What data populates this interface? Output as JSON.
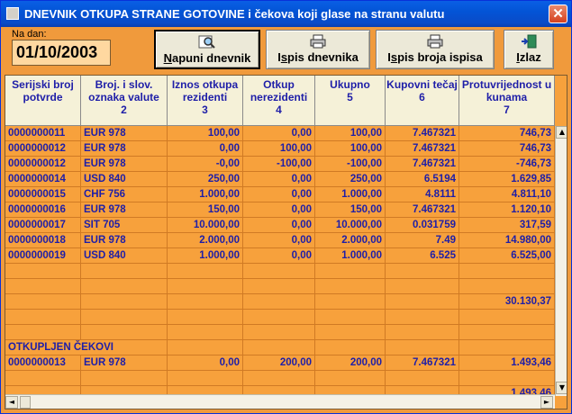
{
  "window": {
    "title": "DNEVNIK OTKUPA STRANE GOTOVINE i čekova koji glase na stranu valutu",
    "close": "✕"
  },
  "date": {
    "label": "Na dan:",
    "value": "01/10/2003"
  },
  "buttons": [
    {
      "u": "N",
      "rest": "apuni dnevnik",
      "icon": "magnifier-icon"
    },
    {
      "pre": "I",
      "u": "s",
      "rest": "pis dnevnika",
      "icon": "printer-icon"
    },
    {
      "pre": "I",
      "u": "s",
      "rest": "pis broja ispisa",
      "icon": "printer-icon"
    },
    {
      "u": "I",
      "rest": "zlaz",
      "icon": "exit-door-icon"
    }
  ],
  "columns": [
    {
      "label": "Serijski broj potvrde",
      "num": ""
    },
    {
      "label": "Broj. i slov. oznaka valute",
      "num": "2"
    },
    {
      "label": "Iznos otkupa rezidenti",
      "num": "3"
    },
    {
      "label": "Otkup nerezidenti",
      "num": "4"
    },
    {
      "label": "Ukupno",
      "num": "5"
    },
    {
      "label": "Kupovni tečaj",
      "num": "6"
    },
    {
      "label": "Protuvrijednost u kunama",
      "num": "7"
    }
  ],
  "rows": [
    [
      "0000000011",
      "EUR 978",
      "100,00",
      "0,00",
      "100,00",
      "7.467321",
      "746,73"
    ],
    [
      "0000000012",
      "EUR 978",
      "0,00",
      "100,00",
      "100,00",
      "7.467321",
      "746,73"
    ],
    [
      "0000000012",
      "EUR 978",
      "-0,00",
      "-100,00",
      "-100,00",
      "7.467321",
      "-746,73"
    ],
    [
      "0000000014",
      "USD 840",
      "250,00",
      "0,00",
      "250,00",
      "6.5194",
      "1.629,85"
    ],
    [
      "0000000015",
      "CHF 756",
      "1.000,00",
      "0,00",
      "1.000,00",
      "4.8111",
      "4.811,10"
    ],
    [
      "0000000016",
      "EUR 978",
      "150,00",
      "0,00",
      "150,00",
      "7.467321",
      "1.120,10"
    ],
    [
      "0000000017",
      "SIT 705",
      "10.000,00",
      "0,00",
      "10.000,00",
      "0.031759",
      "317,59"
    ],
    [
      "0000000018",
      "EUR 978",
      "2.000,00",
      "0,00",
      "2.000,00",
      "7.49",
      "14.980,00"
    ],
    [
      "0000000019",
      "USD 840",
      "1.000,00",
      "0,00",
      "1.000,00",
      "6.525",
      "6.525,00"
    ],
    [
      "",
      "",
      "",
      "",
      "",
      "",
      ""
    ],
    [
      "",
      "",
      "",
      "",
      "",
      "",
      ""
    ],
    [
      "",
      "",
      "",
      "",
      "",
      "",
      "30.130,37"
    ],
    [
      "",
      "",
      "",
      "",
      "",
      "",
      ""
    ],
    [
      "",
      "",
      "",
      "",
      "",
      "",
      ""
    ],
    [
      "OTKUPLJEN ČEKOVI",
      "",
      "",
      "",
      "",
      "",
      ""
    ],
    [
      "0000000013",
      "EUR 978",
      "0,00",
      "200,00",
      "200,00",
      "7.467321",
      "1.493,46"
    ],
    [
      "",
      "",
      "",
      "",
      "",
      "",
      ""
    ],
    [
      "",
      "",
      "",
      "",
      "",
      "",
      "1.493,46"
    ],
    [
      "",
      "",
      "",
      "",
      "",
      "",
      ""
    ]
  ],
  "scroll": {
    "up": "▲",
    "down": "▼",
    "left": "◄",
    "right": "►"
  }
}
